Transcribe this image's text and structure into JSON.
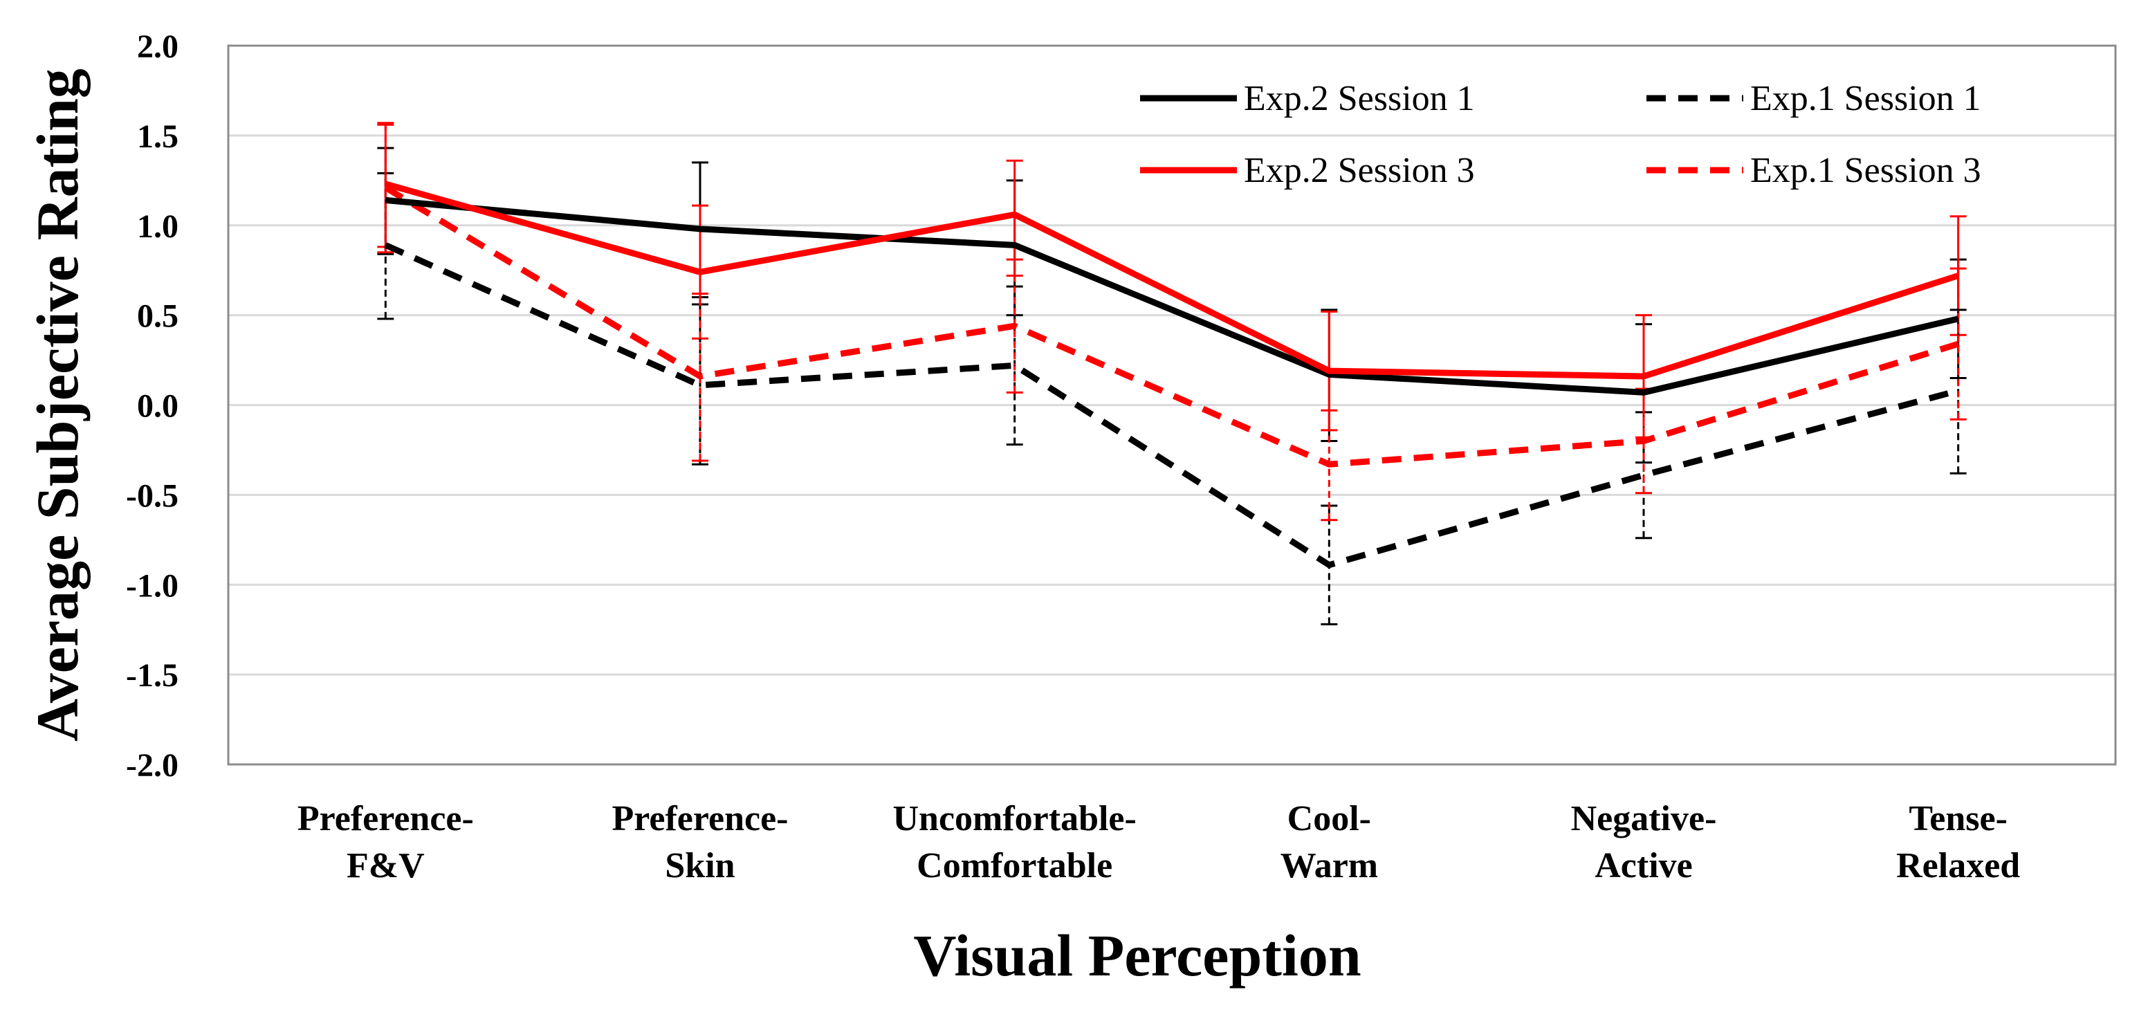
{
  "chart_data": {
    "type": "line",
    "title": "",
    "xlabel": "Visual Perception",
    "ylabel": "Average Subjective Rating",
    "ylim": [
      -2.0,
      2.0
    ],
    "yticks": [
      "2.0",
      "1.5",
      "1.0",
      "0.5",
      "0.0",
      "-0.5",
      "-1.0",
      "-1.5",
      "-2.0"
    ],
    "grid": true,
    "legend_position": "top-right",
    "categories": [
      [
        "Preference-",
        "F&V"
      ],
      [
        "Preference-",
        "Skin"
      ],
      [
        "Uncomfortable-",
        "Comfortable"
      ],
      [
        "Cool-",
        "Warm"
      ],
      [
        "Negative-",
        "Active"
      ],
      [
        "Tense-",
        "Relaxed"
      ]
    ],
    "series": [
      {
        "name": "Exp.2 Session 1",
        "color": "#000000",
        "dashed": false,
        "values": [
          1.14,
          0.98,
          0.89,
          0.17,
          0.07,
          0.48
        ],
        "err_low": [
          0.84,
          0.6,
          0.5,
          -0.2,
          -0.32,
          0.15
        ],
        "err_high": [
          1.43,
          1.35,
          1.25,
          0.53,
          0.45,
          0.81
        ]
      },
      {
        "name": "Exp.2 Session 3",
        "color": "#ff0000",
        "dashed": false,
        "values": [
          1.23,
          0.74,
          1.06,
          0.19,
          0.16,
          0.72
        ],
        "err_low": [
          0.88,
          0.37,
          0.72,
          -0.14,
          -0.18,
          0.39
        ],
        "err_high": [
          1.57,
          1.11,
          1.36,
          0.52,
          0.5,
          1.05
        ]
      },
      {
        "name": "Exp.1 Session 1",
        "color": "#000000",
        "dashed": true,
        "values": [
          0.89,
          0.11,
          0.22,
          -0.89,
          -0.39,
          0.08
        ],
        "err_low": [
          0.48,
          -0.33,
          -0.22,
          -1.22,
          -0.74,
          -0.38
        ],
        "err_high": [
          1.29,
          0.56,
          0.66,
          -0.56,
          -0.04,
          0.53
        ]
      },
      {
        "name": "Exp.1 Session 3",
        "color": "#ff0000",
        "dashed": true,
        "values": [
          1.21,
          0.16,
          0.44,
          -0.33,
          -0.2,
          0.34
        ],
        "err_low": [
          0.85,
          -0.31,
          0.07,
          -0.64,
          -0.49,
          -0.08
        ],
        "err_high": [
          1.56,
          0.62,
          0.81,
          -0.03,
          0.09,
          0.76
        ]
      }
    ],
    "legend_order": [
      "Exp.2 Session 1",
      "Exp.1 Session 1",
      "Exp.2 Session 3",
      "Exp.1 Session 3"
    ]
  }
}
